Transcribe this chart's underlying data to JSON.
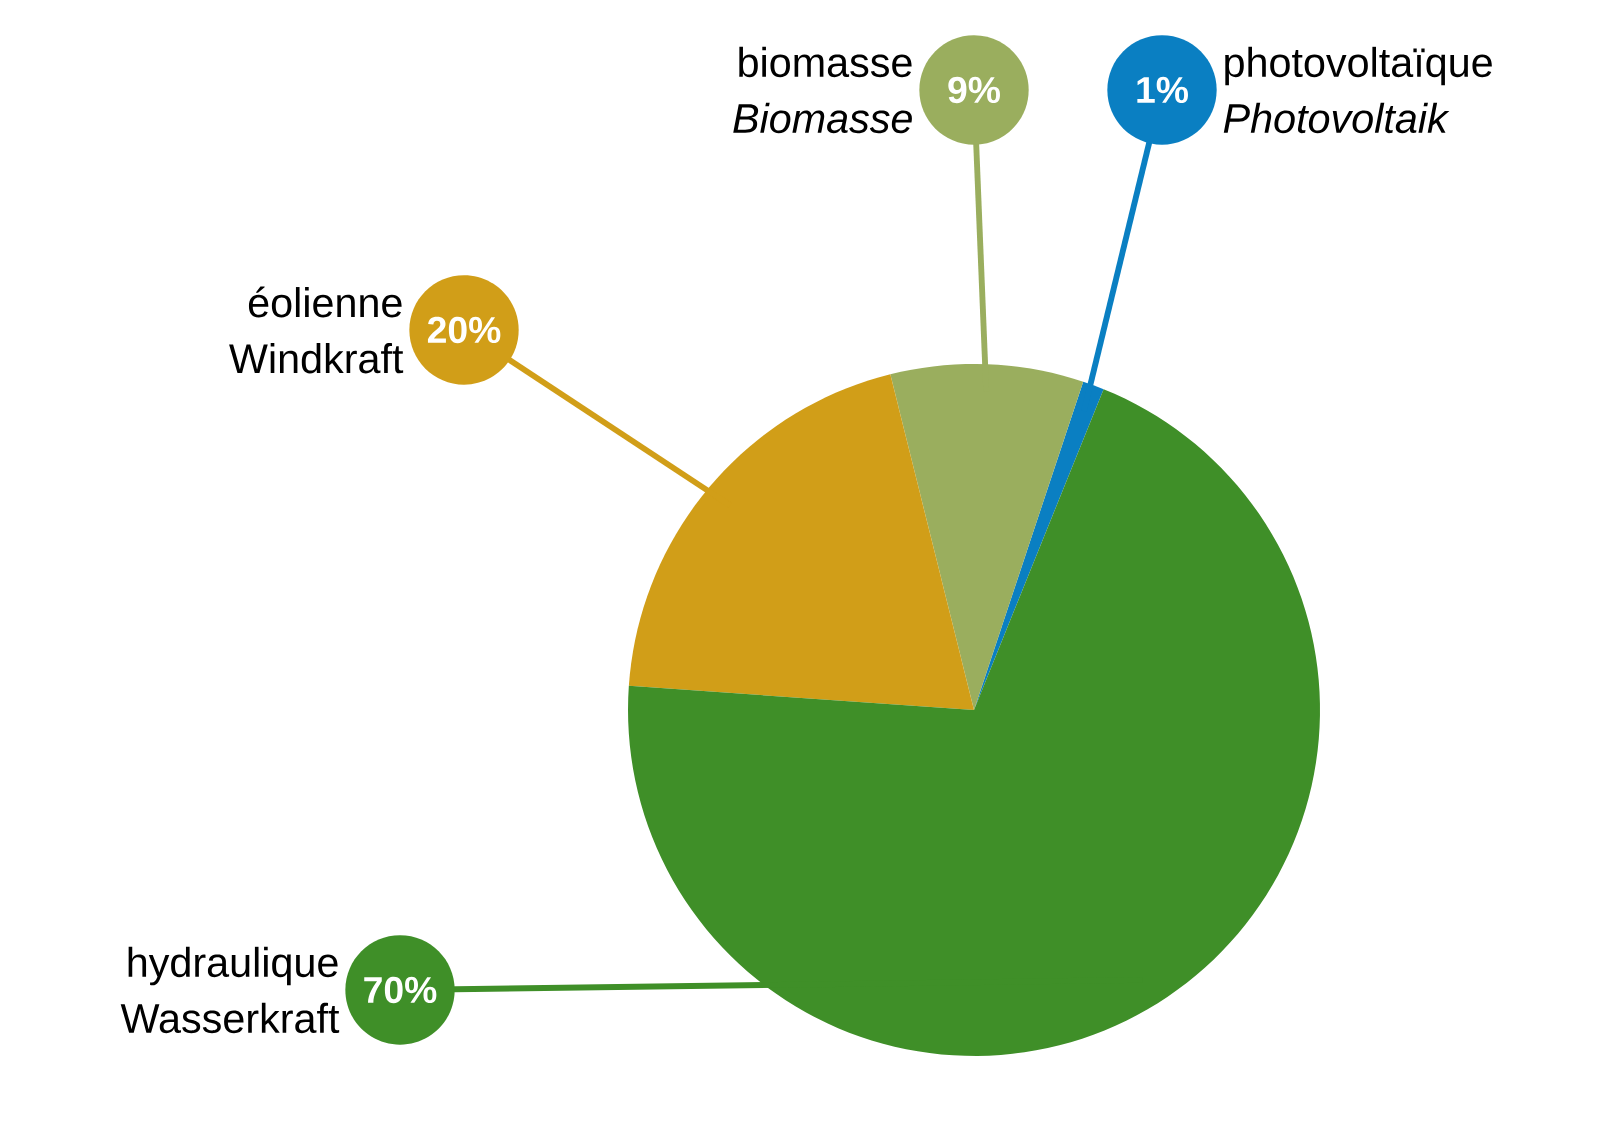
{
  "chart_data": {
    "type": "pie",
    "categories": [
      "photovoltaïque *Photovoltaik*",
      "biomasse *Biomasse*",
      "éolienne Windkraft",
      "hydraulique Wasserkraft"
    ],
    "values": [
      1,
      9,
      20,
      70
    ],
    "value_labels": [
      "1%",
      "9%",
      "20%",
      "70%"
    ],
    "colors": [
      "#0a7fc2",
      "#9aae5e",
      "#d19e18",
      "#3f8f28"
    ]
  }
}
